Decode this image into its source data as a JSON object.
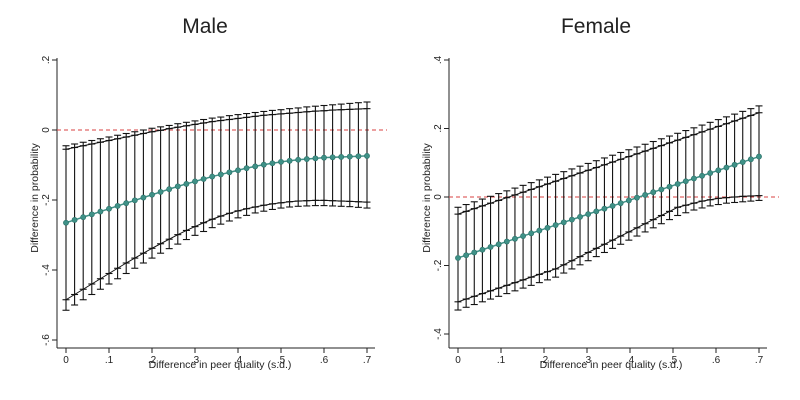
{
  "chart_data": [
    {
      "type": "scatter",
      "title": "Male",
      "xlabel": "Difference in peer quality (s.d.)",
      "ylabel": "Difference in probability",
      "xlim": [
        0,
        0.7
      ],
      "ylim": [
        -0.6,
        0.2
      ],
      "xticks": [
        0,
        0.1,
        0.2,
        0.3,
        0.4,
        0.5,
        0.6,
        0.7
      ],
      "xtick_labels": [
        "0",
        ".1",
        ".2",
        ".3",
        ".4",
        ".5",
        ".6",
        ".7"
      ],
      "yticks": [
        -0.6,
        -0.4,
        -0.2,
        0,
        0.2
      ],
      "ytick_labels": [
        "-.6",
        "-.4",
        "-.2",
        "0",
        ".2"
      ],
      "reference_line": 0,
      "x_start": 0,
      "x_step": 0.02,
      "estimate": [
        -0.265,
        -0.257,
        -0.249,
        -0.241,
        -0.233,
        -0.225,
        -0.217,
        -0.209,
        -0.201,
        -0.193,
        -0.185,
        -0.177,
        -0.169,
        -0.161,
        -0.154,
        -0.147,
        -0.14,
        -0.133,
        -0.127,
        -0.121,
        -0.115,
        -0.109,
        -0.104,
        -0.099,
        -0.095,
        -0.091,
        -0.088,
        -0.085,
        -0.083,
        -0.081,
        -0.079,
        -0.078,
        -0.077,
        -0.076,
        -0.075,
        -0.074
      ],
      "upper": [
        -0.055,
        -0.05,
        -0.045,
        -0.04,
        -0.035,
        -0.03,
        -0.025,
        -0.02,
        -0.015,
        -0.01,
        -0.005,
        -0.001,
        0.004,
        0.008,
        0.012,
        0.016,
        0.02,
        0.024,
        0.027,
        0.03,
        0.033,
        0.036,
        0.039,
        0.042,
        0.044,
        0.046,
        0.048,
        0.05,
        0.052,
        0.054,
        0.055,
        0.057,
        0.058,
        0.059,
        0.06,
        0.061
      ],
      "lower": [
        -0.485,
        -0.47,
        -0.455,
        -0.44,
        -0.425,
        -0.41,
        -0.395,
        -0.38,
        -0.366,
        -0.352,
        -0.338,
        -0.325,
        -0.312,
        -0.299,
        -0.287,
        -0.276,
        -0.265,
        -0.255,
        -0.246,
        -0.238,
        -0.231,
        -0.225,
        -0.22,
        -0.215,
        -0.211,
        -0.208,
        -0.205,
        -0.203,
        -0.202,
        -0.201,
        -0.201,
        -0.202,
        -0.203,
        -0.204,
        -0.205,
        -0.206
      ],
      "lower_outer": [
        -0.515,
        -0.5,
        -0.485,
        -0.47,
        -0.455,
        -0.44,
        -0.425,
        -0.41,
        -0.395,
        -0.38,
        -0.366,
        -0.352,
        -0.339,
        -0.326,
        -0.313,
        -0.301,
        -0.29,
        -0.279,
        -0.269,
        -0.26,
        -0.251,
        -0.244,
        -0.237,
        -0.232,
        -0.227,
        -0.223,
        -0.22,
        -0.218,
        -0.217,
        -0.216,
        -0.216,
        -0.217,
        -0.218,
        -0.219,
        -0.221,
        -0.223
      ],
      "upper_outer": [
        -0.045,
        -0.04,
        -0.035,
        -0.03,
        -0.025,
        -0.02,
        -0.015,
        -0.01,
        -0.005,
        0.0,
        0.005,
        0.009,
        0.013,
        0.018,
        0.022,
        0.026,
        0.03,
        0.034,
        0.037,
        0.041,
        0.044,
        0.047,
        0.05,
        0.053,
        0.056,
        0.058,
        0.061,
        0.063,
        0.066,
        0.068,
        0.07,
        0.072,
        0.074,
        0.076,
        0.078,
        0.08
      ],
      "colors": {
        "estimate": "#3f9187",
        "bars": "#111111",
        "reference": "#d94040"
      }
    },
    {
      "type": "scatter",
      "title": "Female",
      "xlabel": "Difference in peer quality (s.d.)",
      "ylabel": "Difference in probability",
      "xlim": [
        0,
        0.7
      ],
      "ylim": [
        -0.4,
        0.4
      ],
      "xticks": [
        0,
        0.1,
        0.2,
        0.3,
        0.4,
        0.5,
        0.6,
        0.7
      ],
      "xtick_labels": [
        "0",
        ".1",
        ".2",
        ".3",
        ".4",
        ".5",
        ".6",
        ".7"
      ],
      "yticks": [
        -0.4,
        -0.2,
        0,
        0.2,
        0.4
      ],
      "ytick_labels": [
        "-.4",
        "-.2",
        "0",
        ".2",
        ".4"
      ],
      "reference_line": 0,
      "x_start": 0,
      "x_step": 0.02,
      "estimate": [
        -0.178,
        -0.17,
        -0.162,
        -0.154,
        -0.146,
        -0.138,
        -0.13,
        -0.122,
        -0.114,
        -0.106,
        -0.098,
        -0.09,
        -0.082,
        -0.074,
        -0.066,
        -0.058,
        -0.05,
        -0.042,
        -0.034,
        -0.026,
        -0.018,
        -0.01,
        -0.002,
        0.006,
        0.014,
        0.022,
        0.03,
        0.038,
        0.046,
        0.054,
        0.062,
        0.07,
        0.078,
        0.086,
        0.094,
        0.102,
        0.11,
        0.118
      ],
      "upper": [
        -0.05,
        -0.042,
        -0.034,
        -0.026,
        -0.018,
        -0.01,
        -0.002,
        0.006,
        0.014,
        0.022,
        0.03,
        0.038,
        0.046,
        0.054,
        0.062,
        0.07,
        0.078,
        0.086,
        0.094,
        0.102,
        0.11,
        0.118,
        0.126,
        0.134,
        0.142,
        0.15,
        0.158,
        0.166,
        0.174,
        0.182,
        0.19,
        0.198,
        0.206,
        0.214,
        0.222,
        0.23,
        0.238,
        0.246
      ],
      "lower": [
        -0.306,
        -0.298,
        -0.29,
        -0.282,
        -0.274,
        -0.266,
        -0.258,
        -0.25,
        -0.242,
        -0.234,
        -0.226,
        -0.218,
        -0.21,
        -0.198,
        -0.186,
        -0.174,
        -0.162,
        -0.15,
        -0.138,
        -0.126,
        -0.114,
        -0.102,
        -0.09,
        -0.078,
        -0.066,
        -0.054,
        -0.042,
        -0.03,
        -0.024,
        -0.018,
        -0.012,
        -0.008,
        -0.004,
        -0.002,
        0.0,
        0.002,
        0.003,
        0.004
      ],
      "lower_outer": [
        -0.33,
        -0.322,
        -0.314,
        -0.306,
        -0.298,
        -0.29,
        -0.282,
        -0.274,
        -0.266,
        -0.258,
        -0.25,
        -0.242,
        -0.234,
        -0.222,
        -0.21,
        -0.198,
        -0.186,
        -0.174,
        -0.162,
        -0.15,
        -0.138,
        -0.126,
        -0.114,
        -0.102,
        -0.09,
        -0.078,
        -0.066,
        -0.054,
        -0.046,
        -0.038,
        -0.032,
        -0.026,
        -0.022,
        -0.018,
        -0.016,
        -0.014,
        -0.012,
        -0.01
      ],
      "upper_outer": [
        -0.03,
        -0.022,
        -0.014,
        -0.006,
        0.002,
        0.01,
        0.018,
        0.026,
        0.034,
        0.042,
        0.05,
        0.058,
        0.066,
        0.074,
        0.082,
        0.09,
        0.098,
        0.106,
        0.114,
        0.122,
        0.13,
        0.138,
        0.146,
        0.154,
        0.162,
        0.17,
        0.178,
        0.186,
        0.194,
        0.202,
        0.21,
        0.218,
        0.226,
        0.234,
        0.242,
        0.25,
        0.258,
        0.266
      ],
      "colors": {
        "estimate": "#3f9187",
        "bars": "#111111",
        "reference": "#d94040"
      }
    }
  ]
}
